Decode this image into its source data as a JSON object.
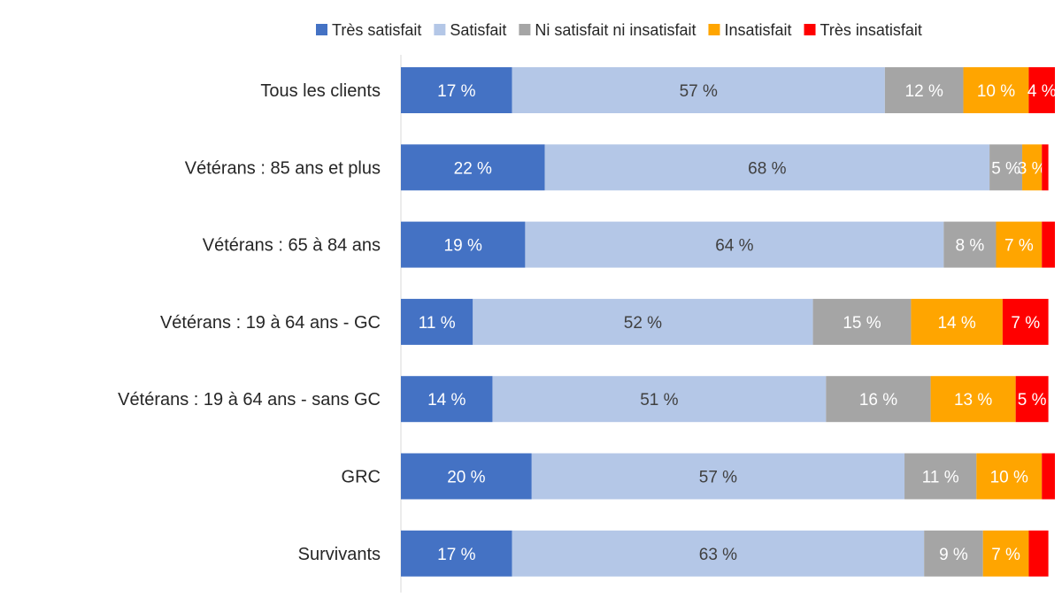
{
  "chart_data": {
    "type": "bar",
    "orientation": "horizontal",
    "stacked": true,
    "title": "",
    "xlabel": "",
    "ylabel": "",
    "xlim": [
      0,
      100
    ],
    "grid": false,
    "legend_position": "top",
    "unit_suffix": " %",
    "categories": [
      "Tous les clients",
      "Vétérans : 85 ans et plus",
      "Vétérans : 65 à 84 ans",
      "Vétérans : 19 à 64 ans - GC",
      "Vétérans : 19 à 64 ans - sans GC",
      "GRC",
      "Survivants"
    ],
    "series": [
      {
        "name": "Très satisfait",
        "color": "#4472C4",
        "label_color": "#ffffff",
        "values": [
          17,
          22,
          19,
          11,
          14,
          20,
          17
        ],
        "labels_shown": [
          true,
          true,
          true,
          true,
          true,
          true,
          true
        ]
      },
      {
        "name": "Satisfait",
        "color": "#B4C7E7",
        "label_color": "#404040",
        "values": [
          57,
          68,
          64,
          52,
          51,
          57,
          63
        ],
        "labels_shown": [
          true,
          true,
          true,
          true,
          true,
          true,
          true
        ]
      },
      {
        "name": "Ni satisfait ni insatisfait",
        "color": "#A5A5A5",
        "label_color": "#ffffff",
        "values": [
          12,
          5,
          8,
          15,
          16,
          11,
          9
        ],
        "labels_shown": [
          true,
          true,
          true,
          true,
          true,
          true,
          true
        ]
      },
      {
        "name": "Insatisfait",
        "color": "#FFA500",
        "label_color": "#ffffff",
        "values": [
          10,
          3,
          7,
          14,
          13,
          10,
          7
        ],
        "labels_shown": [
          true,
          true,
          true,
          true,
          true,
          true,
          true
        ]
      },
      {
        "name": "Très insatisfait",
        "color": "#FF0000",
        "label_color": "#ffffff",
        "values": [
          4,
          1,
          2,
          7,
          5,
          2,
          3
        ],
        "labels_shown": [
          true,
          false,
          false,
          true,
          true,
          false,
          false
        ]
      }
    ]
  }
}
